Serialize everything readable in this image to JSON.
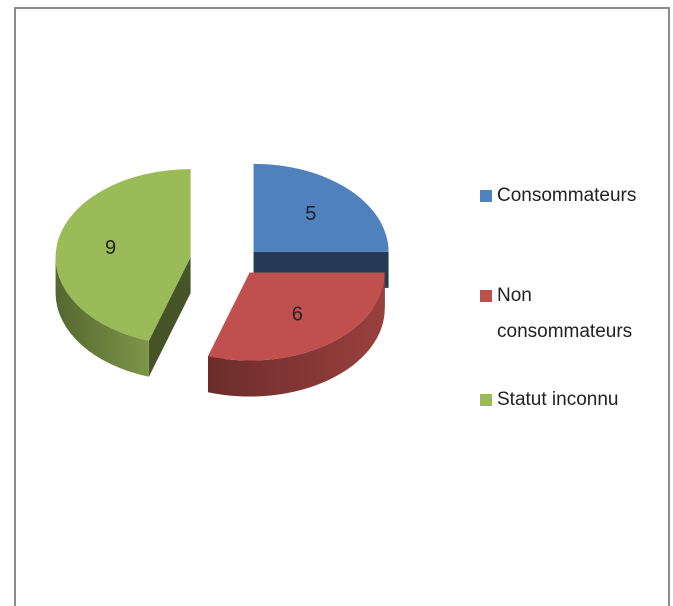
{
  "chart_data": {
    "type": "pie",
    "categories": [
      "Consommateurs",
      "Non consommateurs",
      "Statut inconnu"
    ],
    "values": [
      5,
      6,
      9
    ],
    "colors": [
      "#4f81bd",
      "#c0504d",
      "#9bbb59"
    ]
  }
}
